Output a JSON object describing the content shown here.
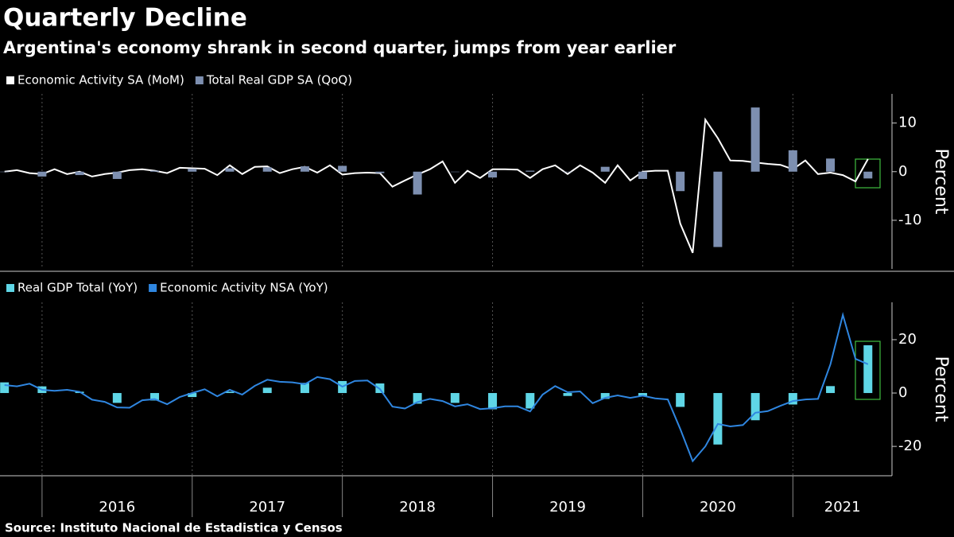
{
  "chart_data": [
    {
      "type": "combo",
      "title": "Quarterly Decline",
      "subtitle": "Argentina's economy shrank in second quarter, jumps from year earlier",
      "ylabel": "Percent",
      "ylim": [
        -20,
        16
      ],
      "yticks": [
        -10,
        0,
        10
      ],
      "xlim": [
        2015.72,
        2021.66
      ],
      "grid": true,
      "series": [
        {
          "name": "Economic Activity SA (MoM)",
          "type": "line",
          "color": "#ffffff",
          "x": [
            2015.75,
            2015.833,
            2015.917,
            2016,
            2016.083,
            2016.167,
            2016.25,
            2016.333,
            2016.417,
            2016.5,
            2016.583,
            2016.667,
            2016.75,
            2016.833,
            2016.917,
            2017,
            2017.083,
            2017.167,
            2017.25,
            2017.333,
            2017.417,
            2017.5,
            2017.583,
            2017.667,
            2017.75,
            2017.833,
            2017.917,
            2018,
            2018.083,
            2018.167,
            2018.25,
            2018.333,
            2018.417,
            2018.5,
            2018.583,
            2018.667,
            2018.75,
            2018.833,
            2018.917,
            2019,
            2019.083,
            2019.167,
            2019.25,
            2019.333,
            2019.417,
            2019.5,
            2019.583,
            2019.667,
            2019.75,
            2019.833,
            2019.917,
            2020,
            2020.083,
            2020.167,
            2020.25,
            2020.333,
            2020.417,
            2020.5,
            2020.583,
            2020.667,
            2020.75,
            2020.833,
            2020.917,
            2021,
            2021.083,
            2021.167,
            2021.25,
            2021.333,
            2021.417,
            2021.5
          ],
          "values": [
            0,
            0.3,
            -0.3,
            -0.5,
            0.5,
            -0.5,
            0,
            -1,
            -0.5,
            -0.2,
            0.3,
            0.5,
            0.2,
            -0.3,
            0.8,
            0.7,
            0.6,
            -0.7,
            1.3,
            -0.5,
            1,
            1.1,
            -0.3,
            0.5,
            1,
            -0.2,
            1.3,
            -0.6,
            -0.3,
            -0.2,
            -0.3,
            -3.1,
            -1.8,
            -0.6,
            0.5,
            2.1,
            -2.3,
            0.2,
            -1.3,
            0.5,
            0.5,
            0.4,
            -1.3,
            0.5,
            1.3,
            -0.5,
            1.3,
            -0.2,
            -2.3,
            1.3,
            -1.8,
            0,
            0.2,
            0.2,
            -10.7,
            -16.7,
            10.7,
            6.9,
            2.3,
            2.2,
            1.9,
            1.6,
            1.4,
            0.5,
            2.3,
            -0.5,
            -0.2,
            -0.7,
            -2,
            2.6
          ]
        },
        {
          "name": "Total Real GDP SA (QoQ)",
          "type": "bar",
          "color": "#7d8fb0",
          "x": [
            2015.75,
            2016,
            2016.25,
            2016.5,
            2016.75,
            2017,
            2017.25,
            2017.5,
            2017.75,
            2018,
            2018.25,
            2018.5,
            2018.75,
            2019,
            2019.25,
            2019.5,
            2019.75,
            2020,
            2020.25,
            2020.5,
            2020.75,
            2021,
            2021.25,
            2021.5
          ],
          "values": [
            0,
            -1,
            -0.7,
            -1.5,
            0.2,
            0.6,
            0.7,
            0.9,
            1.1,
            1.2,
            -0.3,
            -4.7,
            0,
            -1.2,
            0.2,
            0,
            1,
            -1.5,
            -4,
            -15.5,
            13.2,
            4.4,
            2.7,
            -1.4
          ]
        }
      ]
    },
    {
      "type": "combo",
      "ylabel": "Percent",
      "ylim": [
        -31,
        34
      ],
      "yticks": [
        -20,
        0,
        20
      ],
      "xlim": [
        2015.72,
        2021.66
      ],
      "xticks": [
        {
          "value": 2016,
          "label": "2016"
        },
        {
          "value": 2017,
          "label": "2017"
        },
        {
          "value": 2018,
          "label": "2018"
        },
        {
          "value": 2019,
          "label": "2019"
        },
        {
          "value": 2020,
          "label": "2020"
        },
        {
          "value": 2021,
          "label": "2021"
        }
      ],
      "grid": true,
      "source": "Source: Instituto Nacional de Estadistica y Censos",
      "series": [
        {
          "name": "Real GDP Total (YoY)",
          "type": "bar",
          "color": "#5fd6e6",
          "x": [
            2015.75,
            2016,
            2016.25,
            2016.5,
            2016.75,
            2017,
            2017.25,
            2017.5,
            2017.75,
            2018,
            2018.25,
            2018.5,
            2018.75,
            2019,
            2019.25,
            2019.5,
            2019.75,
            2020,
            2020.25,
            2020.5,
            2020.75,
            2021,
            2021.25,
            2021.5
          ],
          "values": [
            4,
            2.5,
            0.5,
            -3.7,
            -2.8,
            -1.5,
            0.5,
            2,
            3.8,
            4.5,
            3.6,
            -4,
            -3.7,
            -6.1,
            -5.8,
            -1.1,
            -2.2,
            -1.1,
            -5.2,
            -19.3,
            -10.2,
            -4.3,
            2.6,
            17.9
          ]
        },
        {
          "name": "Economic Activity NSA (YoY)",
          "type": "line",
          "color": "#2f86e0",
          "x": [
            2015.75,
            2015.833,
            2015.917,
            2016,
            2016.083,
            2016.167,
            2016.25,
            2016.333,
            2016.417,
            2016.5,
            2016.583,
            2016.667,
            2016.75,
            2016.833,
            2016.917,
            2017,
            2017.083,
            2017.167,
            2017.25,
            2017.333,
            2017.417,
            2017.5,
            2017.583,
            2017.667,
            2017.75,
            2017.833,
            2017.917,
            2018,
            2018.083,
            2018.167,
            2018.25,
            2018.333,
            2018.417,
            2018.5,
            2018.583,
            2018.667,
            2018.75,
            2018.833,
            2018.917,
            2019,
            2019.083,
            2019.167,
            2019.25,
            2019.333,
            2019.417,
            2019.5,
            2019.583,
            2019.667,
            2019.75,
            2019.833,
            2019.917,
            2020,
            2020.083,
            2020.167,
            2020.25,
            2020.333,
            2020.417,
            2020.5,
            2020.583,
            2020.667,
            2020.75,
            2020.833,
            2020.917,
            2021,
            2021.083,
            2021.167,
            2021.25,
            2021.333,
            2021.417,
            2021.5
          ],
          "values": [
            3,
            2.5,
            3.5,
            1.2,
            0.8,
            1.2,
            0.5,
            -2.5,
            -3.3,
            -5.4,
            -5.5,
            -2.7,
            -2.3,
            -4.2,
            -1.5,
            0,
            1.4,
            -1.2,
            1.2,
            -0.6,
            2.7,
            5,
            4.2,
            4,
            3.3,
            6,
            5.2,
            2.4,
            4.5,
            4.7,
            1.5,
            -5.1,
            -5.8,
            -3.4,
            -2.2,
            -3,
            -5,
            -4.2,
            -6,
            -5.7,
            -5,
            -5,
            -6.9,
            -0.6,
            2.6,
            0.3,
            0.6,
            -3.8,
            -1.8,
            -0.9,
            -1.8,
            -1,
            -2,
            -2.4,
            -13.5,
            -25.5,
            -20,
            -11.6,
            -12.5,
            -12,
            -7.4,
            -6.8,
            -4.8,
            -3,
            -2.4,
            -2.2,
            10.8,
            29.3,
            12.8,
            10.8
          ]
        }
      ]
    }
  ]
}
